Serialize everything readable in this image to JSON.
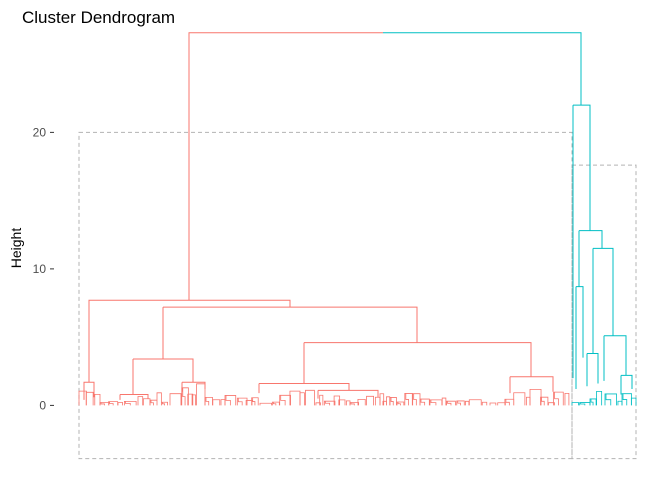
{
  "chart_data": {
    "type": "dendrogram",
    "title": "Cluster Dendrogram",
    "xlabel": "",
    "ylabel": "Height",
    "ylim": [
      -4,
      27.5
    ],
    "y_ticks": [
      0,
      10,
      20
    ],
    "y_tick_labels": [
      "0",
      "10",
      "20"
    ],
    "grid": false,
    "cut_height": 20,
    "cluster_colors": [
      "#f8766d",
      "#00bfc4"
    ],
    "merges": [
      {
        "cluster": 1,
        "height": 27.3,
        "left": [
          0.2,
          0.34
        ],
        "right": [
          0.62,
          0.9
        ]
      },
      {
        "cluster": 1,
        "height": 22.0,
        "left": [
          0.42,
          0.9
        ],
        "right": [
          0.66,
          0.86
        ]
      },
      {
        "cluster": 2,
        "height": 12.8,
        "left": [
          0.28,
          0.44
        ],
        "right": [
          0.53,
          0.72
        ]
      },
      {
        "cluster": 2,
        "height": 11.5,
        "left": [
          0.34,
          0.6
        ],
        "right": [
          0.62,
          0.81
        ]
      },
      {
        "cluster": 2,
        "height": 5.1,
        "left": [
          0.35,
          0.62
        ],
        "right": [
          0.67,
          0.88
        ]
      },
      {
        "cluster": 0,
        "height": 7.7,
        "left": [
          0.02,
          0.04
        ],
        "right": [
          0.15,
          0.31
        ]
      },
      {
        "cluster": 0,
        "height": 7.2,
        "left": [
          0.11,
          0.15
        ],
        "right": [
          0.44,
          0.63
        ]
      },
      {
        "cluster": 0,
        "height": 4.6,
        "left": [
          0.38,
          0.58
        ],
        "right": [
          0.84,
          0.92
        ]
      },
      {
        "cluster": 0,
        "height": 3.4,
        "left": [
          0.18,
          0.3
        ],
        "right": [
          0.57,
          0.7
        ]
      }
    ],
    "cut_boxes": [
      {
        "cluster": 0,
        "top": 20,
        "bottom": -3.9
      },
      {
        "cluster": 1,
        "top": 17.6,
        "bottom": -3.9
      }
    ]
  }
}
